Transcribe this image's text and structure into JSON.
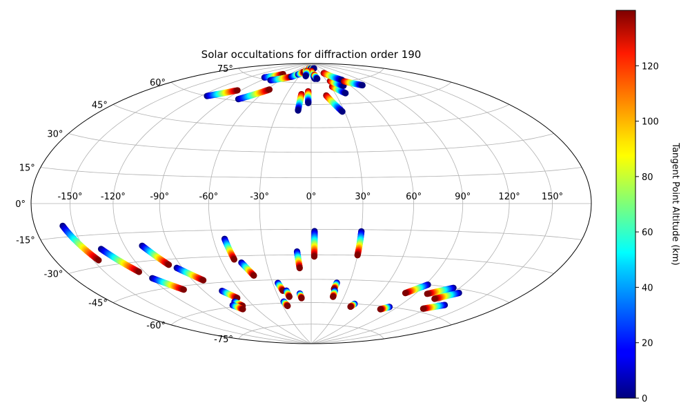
{
  "chart_data": {
    "type": "scatter",
    "projection": "hammer",
    "title": "Solar occultations for diffraction order 190",
    "grid": true,
    "lon_ticks": [
      "-150°",
      "-120°",
      "-90°",
      "-60°",
      "-30°",
      "0°",
      "30°",
      "60°",
      "90°",
      "120°",
      "150°"
    ],
    "lat_ticks": [
      "75°",
      "60°",
      "45°",
      "30°",
      "15°",
      "0°",
      "-15°",
      "-30°",
      "-45°",
      "-60°",
      "-75°"
    ],
    "colorbar": {
      "label": "Tangent Point Altitude (km)",
      "colormap": "jet",
      "range": [
        0,
        140
      ],
      "ticks": [
        "0",
        "20",
        "40",
        "60",
        "80",
        "100",
        "120"
      ]
    },
    "series": [
      {
        "lon_start": -114,
        "lat_start": 60,
        "lon_end": -94,
        "lat_end": 66,
        "alt_start": 0,
        "alt_end": 140
      },
      {
        "lon_start": -78,
        "lat_start": 61,
        "lon_end": -57,
        "lat_end": 69,
        "alt_start": 0,
        "alt_end": 140
      },
      {
        "lon_start": -96,
        "lat_start": 76,
        "lon_end": -76,
        "lat_end": 80,
        "alt_start": 0,
        "alt_end": 140
      },
      {
        "lon_start": -76,
        "lat_start": 75,
        "lon_end": -48,
        "lat_end": 79,
        "alt_start": 0,
        "alt_end": 140
      },
      {
        "lon_start": -47,
        "lat_start": 79,
        "lon_end": -30,
        "lat_end": 83,
        "alt_start": 0,
        "alt_end": 140
      },
      {
        "lon_start": -37,
        "lat_start": 81,
        "lon_end": -25,
        "lat_end": 83,
        "alt_start": 0,
        "alt_end": 140
      },
      {
        "lon_start": -25,
        "lat_start": 84,
        "lon_end": -13,
        "lat_end": 84,
        "alt_start": 140,
        "alt_end": 0
      },
      {
        "lon_start": -13,
        "lat_start": 86,
        "lon_end": 2,
        "lat_end": 86,
        "alt_start": 140,
        "alt_end": 0
      },
      {
        "lon_start": 5,
        "lat_start": 86,
        "lon_end": 17,
        "lat_end": 86,
        "alt_start": 140,
        "alt_end": 0
      },
      {
        "lon_start": 1,
        "lat_start": 84,
        "lon_end": 8,
        "lat_end": 78,
        "alt_start": 140,
        "alt_end": 0
      },
      {
        "lon_start": 9,
        "lat_start": 81,
        "lon_end": 13,
        "lat_end": 78,
        "alt_start": 140,
        "alt_end": 0
      },
      {
        "lon_start": -16,
        "lat_start": 84,
        "lon_end": -14,
        "lat_end": 80,
        "alt_start": 140,
        "alt_end": 0
      },
      {
        "lon_start": -12,
        "lat_start": 67,
        "lon_end": -12,
        "lat_end": 56,
        "alt_start": 140,
        "alt_end": 0
      },
      {
        "lon_start": -4,
        "lat_start": 69,
        "lon_end": -3,
        "lat_end": 61,
        "alt_start": 140,
        "alt_end": 0
      },
      {
        "lon_start": 18,
        "lat_start": 66,
        "lon_end": 28,
        "lat_end": 55,
        "alt_start": 140,
        "alt_end": 0
      },
      {
        "lon_start": 32,
        "lat_start": 72,
        "lon_end": 43,
        "lat_end": 67,
        "alt_start": 140,
        "alt_end": 0
      },
      {
        "lon_start": 36,
        "lat_start": 76,
        "lon_end": 50,
        "lat_end": 72,
        "alt_start": 140,
        "alt_end": 0
      },
      {
        "lon_start": 40,
        "lat_start": 82,
        "lon_end": 60,
        "lat_end": 76,
        "alt_start": 140,
        "alt_end": 0
      },
      {
        "lon_start": 60,
        "lat_start": 75,
        "lon_end": 78,
        "lat_end": 71,
        "alt_start": 140,
        "alt_end": 0
      },
      {
        "lon_start": -158,
        "lat_start": -10,
        "lon_end": -146,
        "lat_end": -27,
        "alt_start": 0,
        "alt_end": 140
      },
      {
        "lon_start": -138,
        "lat_start": -22,
        "lon_end": -124,
        "lat_end": -35,
        "alt_start": 0,
        "alt_end": 140
      },
      {
        "lon_start": -108,
        "lat_start": -22,
        "lon_end": -98,
        "lat_end": -33,
        "alt_start": 0,
        "alt_end": 140
      },
      {
        "lon_start": -94,
        "lat_start": -35,
        "lon_end": -82,
        "lat_end": -43,
        "alt_start": 0,
        "alt_end": 140
      },
      {
        "lon_start": -119,
        "lat_start": -39,
        "lon_end": -105,
        "lat_end": -47,
        "alt_start": 0,
        "alt_end": 140
      },
      {
        "lon_start": -53,
        "lat_start": -20,
        "lon_end": -51,
        "lat_end": -32,
        "alt_start": 0,
        "alt_end": 140
      },
      {
        "lon_start": -47,
        "lat_start": -34,
        "lon_end": -42,
        "lat_end": -42,
        "alt_start": 0,
        "alt_end": 140
      },
      {
        "lon_start": -75,
        "lat_start": -50,
        "lon_end": -68,
        "lat_end": -55,
        "alt_start": 0,
        "alt_end": 140
      },
      {
        "lon_start": -74,
        "lat_start": -57,
        "lon_end": -71,
        "lat_end": -60,
        "alt_start": 0,
        "alt_end": 140
      },
      {
        "lon_start": -80,
        "lat_start": -59,
        "lon_end": -75,
        "lat_end": -62,
        "alt_start": 0,
        "alt_end": 140
      },
      {
        "lon_start": -9,
        "lat_start": -28,
        "lon_end": -8,
        "lat_end": -38,
        "alt_start": 0,
        "alt_end": 140
      },
      {
        "lon_start": 2,
        "lat_start": -16,
        "lon_end": 2,
        "lat_end": -31,
        "alt_start": 0,
        "alt_end": 140
      },
      {
        "lon_start": 30,
        "lat_start": -16,
        "lon_end": 30,
        "lat_end": -30,
        "alt_start": 0,
        "alt_end": 140
      },
      {
        "lon_start": -26,
        "lat_start": -47,
        "lon_end": -24,
        "lat_end": -52,
        "alt_start": 0,
        "alt_end": 140
      },
      {
        "lon_start": -21,
        "lat_start": -52,
        "lon_end": -20,
        "lat_end": -56,
        "alt_start": 0,
        "alt_end": 140
      },
      {
        "lon_start": -10,
        "lat_start": -54,
        "lon_end": -9,
        "lat_end": -57,
        "alt_start": 0,
        "alt_end": 140
      },
      {
        "lon_start": -27,
        "lat_start": -59,
        "lon_end": -25,
        "lat_end": -62,
        "alt_start": 0,
        "alt_end": 140
      },
      {
        "lon_start": 20,
        "lat_start": -47,
        "lon_end": 19,
        "lat_end": -51,
        "alt_start": 0,
        "alt_end": 140
      },
      {
        "lon_start": 20,
        "lat_start": -52,
        "lon_end": 20,
        "lat_end": -56,
        "alt_start": 0,
        "alt_end": 140
      },
      {
        "lon_start": 44,
        "lat_start": -60,
        "lon_end": 42,
        "lat_end": -62,
        "alt_start": 0,
        "alt_end": 140
      },
      {
        "lon_start": 82,
        "lat_start": -60,
        "lon_end": 76,
        "lat_end": -62,
        "alt_start": 0,
        "alt_end": 140
      },
      {
        "lon_start": 92,
        "lat_start": -45,
        "lon_end": 81,
        "lat_end": -51,
        "alt_start": 0,
        "alt_end": 140
      },
      {
        "lon_start": 115,
        "lat_start": -45,
        "lon_end": 100,
        "lat_end": -50,
        "alt_start": 0,
        "alt_end": 140
      },
      {
        "lon_start": 125,
        "lat_start": -47,
        "lon_end": 112,
        "lat_end": -52,
        "alt_start": 0,
        "alt_end": 140
      },
      {
        "lon_start": 130,
        "lat_start": -54,
        "lon_end": 117,
        "lat_end": -58,
        "alt_start": 0,
        "alt_end": 140
      }
    ]
  }
}
